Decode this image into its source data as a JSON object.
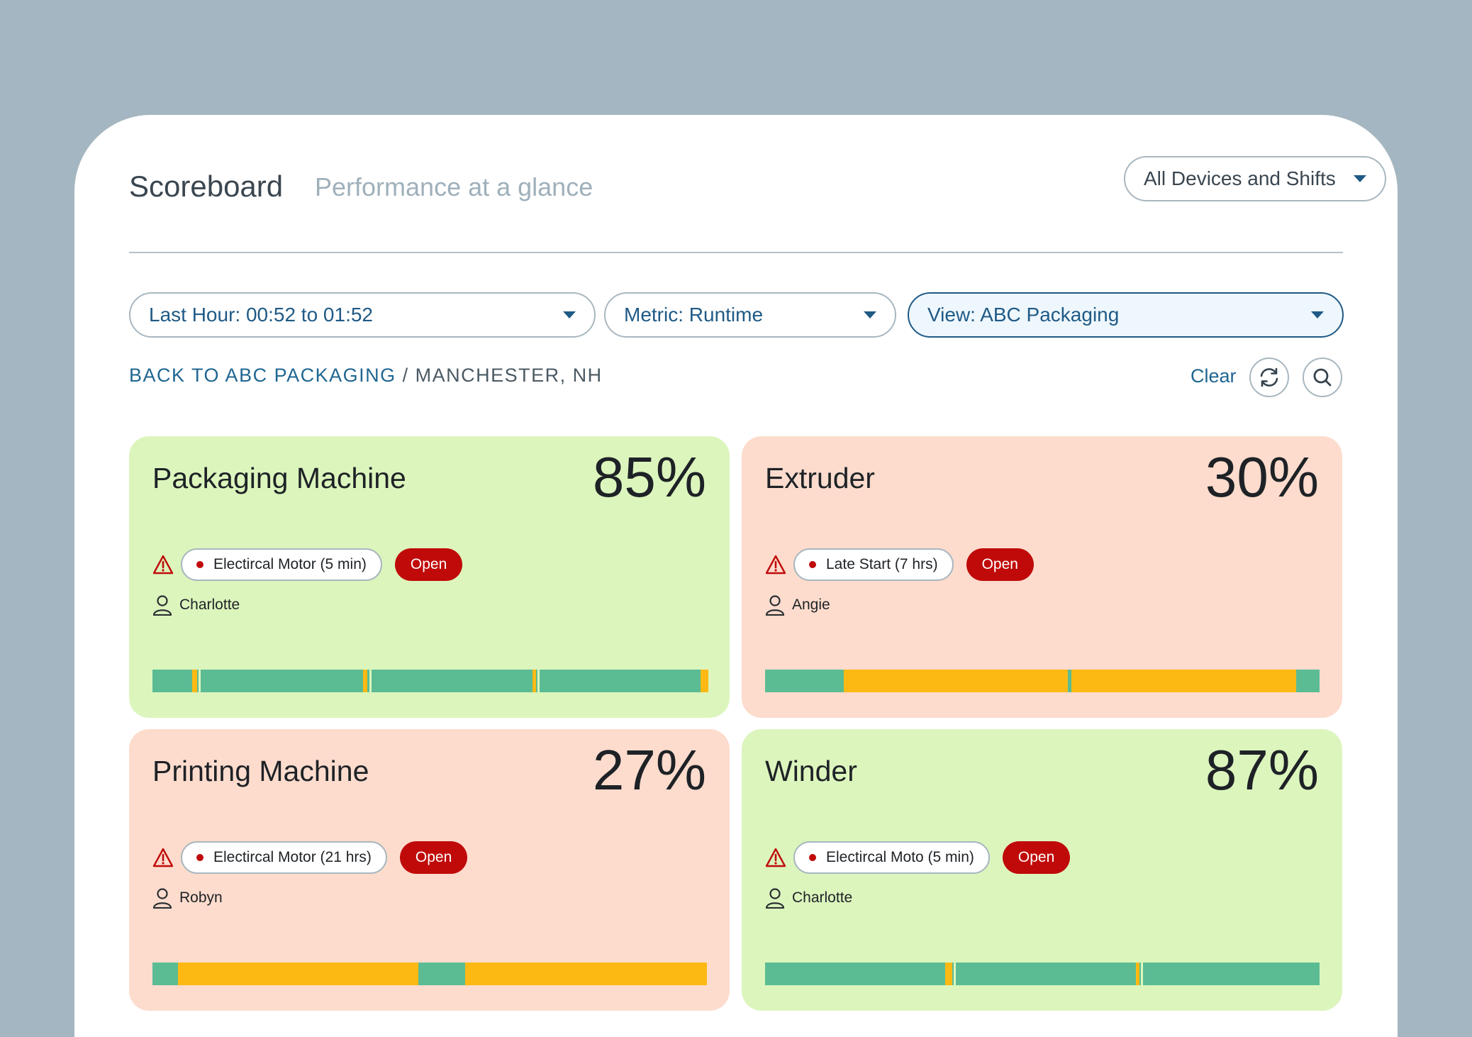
{
  "header": {
    "title": "Scoreboard",
    "subtitle": "Performance at a glance",
    "devices_select": "All Devices and Shifts"
  },
  "filters": {
    "time": "Last Hour: 00:52 to 01:52",
    "metric": "Metric: Runtime",
    "view": "View: ABC Packaging"
  },
  "breadcrumb": {
    "back": "BACK TO ABC PACKAGING",
    "separator": "/",
    "current": "MANCHESTER, NH"
  },
  "actions": {
    "clear": "Clear"
  },
  "colors": {
    "running": "#5bbc94",
    "down": "#fdb913",
    "good_card": "#dcf5bd",
    "bad_card": "#fddccd",
    "accent": "#1f6691",
    "open_badge": "#c00a0a"
  },
  "cards": [
    {
      "name": "Packaging Machine",
      "percent": "85%",
      "status": "good",
      "issue": "Electircal Motor (5 min)",
      "badge": "Open",
      "user": "Charlotte",
      "timeline": [
        [
          "running",
          0.072
        ],
        [
          "down",
          0.008
        ],
        [
          "running",
          0.004
        ],
        [
          "running",
          0.296
        ],
        [
          "down",
          0.008
        ],
        [
          "running",
          0.004
        ],
        [
          "running",
          0.293
        ],
        [
          "down",
          0.007
        ],
        [
          "running",
          0.004
        ],
        [
          "running",
          0.293
        ],
        [
          "down",
          0.014
        ]
      ]
    },
    {
      "name": "Extruder",
      "percent": "30%",
      "status": "bad",
      "issue": "Late Start (7 hrs)",
      "badge": "Open",
      "user": "Angie",
      "timeline": [
        [
          "running",
          0.142
        ],
        [
          "down",
          0.404
        ],
        [
          "running",
          0.007
        ],
        [
          "down",
          0.405
        ],
        [
          "running",
          0.042
        ]
      ]
    },
    {
      "name": "Printing Machine",
      "percent": "27%",
      "status": "bad",
      "issue": "Electircal Motor (21 hrs)",
      "badge": "Open",
      "user": "Robyn",
      "timeline": [
        [
          "running",
          0.046
        ],
        [
          "down",
          0.434
        ],
        [
          "running",
          0.084
        ],
        [
          "down",
          0.436
        ]
      ]
    },
    {
      "name": "Winder",
      "percent": "87%",
      "status": "good",
      "issue": "Electircal Moto (5 min)",
      "badge": "Open",
      "user": "Charlotte",
      "timeline": [
        [
          "running",
          0.325
        ],
        [
          "down",
          0.013
        ],
        [
          "running",
          0.004
        ],
        [
          "running",
          0.327
        ],
        [
          "down",
          0.006
        ],
        [
          "running",
          0.004
        ],
        [
          "running",
          0.321
        ]
      ]
    }
  ]
}
